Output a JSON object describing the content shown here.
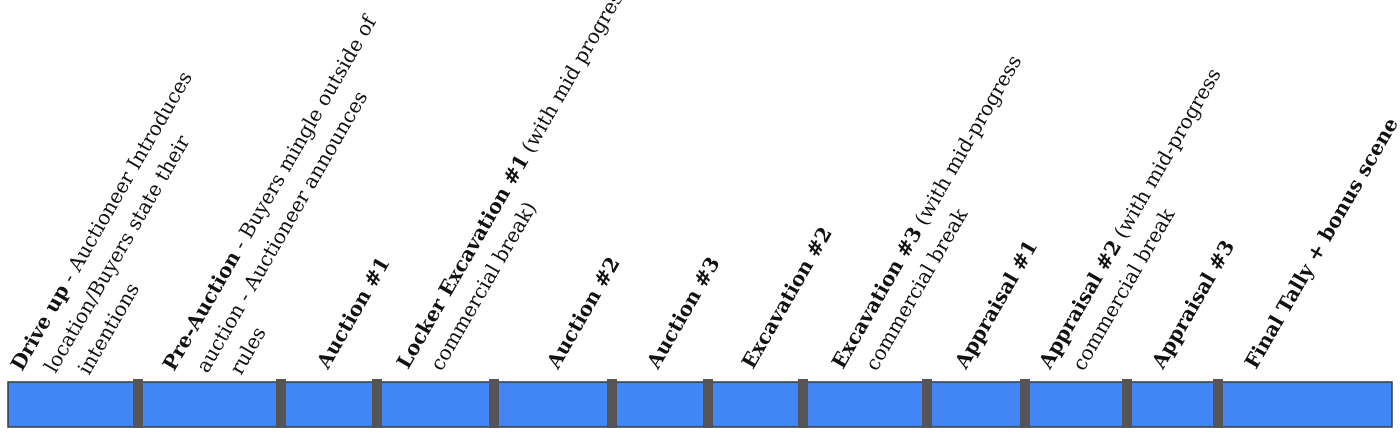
{
  "segments": [
    {
      "title": "Drive up",
      "lines": [
        "- Auctioneer Introduces",
        "location/Buyers state their",
        "intentions"
      ]
    },
    {
      "title": "Pre-Auction",
      "lines": [
        "- Buyers mingle outside of",
        "auction - Auctioneer announces",
        "rules"
      ]
    },
    {
      "title": "Auction #1",
      "lines": []
    },
    {
      "title": "Locker Excavation #1",
      "lines": [
        "(with mid progress",
        "commercial break)"
      ]
    },
    {
      "title": "Auction #2",
      "lines": []
    },
    {
      "title": "Auction #3",
      "lines": []
    },
    {
      "title": "Excavation #2",
      "lines": []
    },
    {
      "title": "Excavation #3",
      "lines": [
        "(with mid-progress",
        "commercial break"
      ]
    },
    {
      "title": "Appraisal #1",
      "lines": []
    },
    {
      "title": "Appraisal #2",
      "lines": [
        "(with mid-progress",
        "commercial break"
      ]
    },
    {
      "title": "Appraisal #3",
      "lines": []
    },
    {
      "title": "Final Tally + bonus scene",
      "lines": []
    }
  ]
}
